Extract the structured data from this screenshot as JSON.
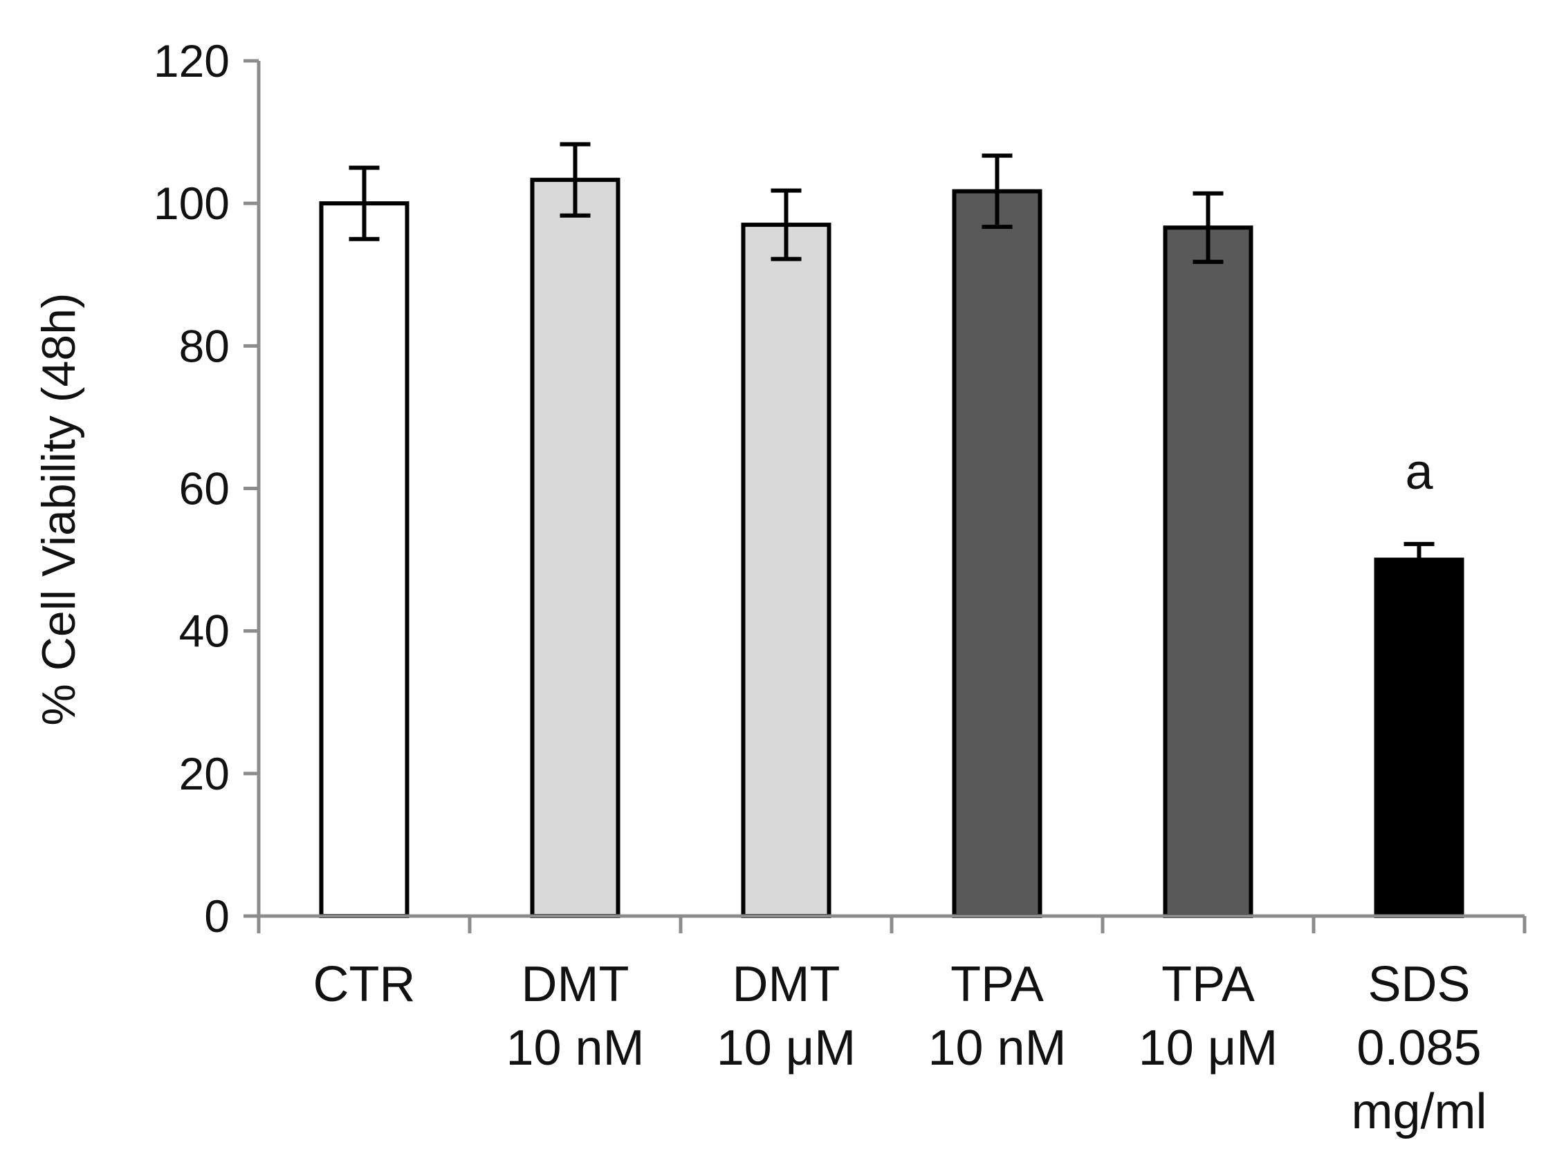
{
  "chart_data": {
    "type": "bar",
    "title": "",
    "xlabel": "",
    "ylabel": "% Cell Viability (48h)",
    "ylim": [
      0,
      120
    ],
    "yticks": [
      0,
      20,
      40,
      60,
      80,
      100,
      120
    ],
    "grid": false,
    "legend": "none",
    "categories": [
      {
        "lines": [
          "CTR"
        ]
      },
      {
        "lines": [
          "DMT",
          "10 nM"
        ]
      },
      {
        "lines": [
          "DMT",
          "10 μM"
        ]
      },
      {
        "lines": [
          "TPA",
          "10 nM"
        ]
      },
      {
        "lines": [
          "TPA",
          "10 μM"
        ]
      },
      {
        "lines": [
          "SDS",
          "0.085",
          "mg/ml"
        ]
      }
    ],
    "values": [
      100,
      103.3,
      97,
      101.7,
      96.6,
      50
    ],
    "errors": [
      5,
      5,
      4.8,
      5,
      4.8,
      2.2
    ],
    "error_style": [
      "both",
      "both",
      "both",
      "both",
      "both",
      "upper"
    ],
    "bar_colors": [
      "#ffffff",
      "#d9d9d9",
      "#d9d9d9",
      "#595959",
      "#595959",
      "#000000"
    ],
    "annotations": [
      {
        "category_index": 5,
        "text": "a"
      }
    ]
  }
}
